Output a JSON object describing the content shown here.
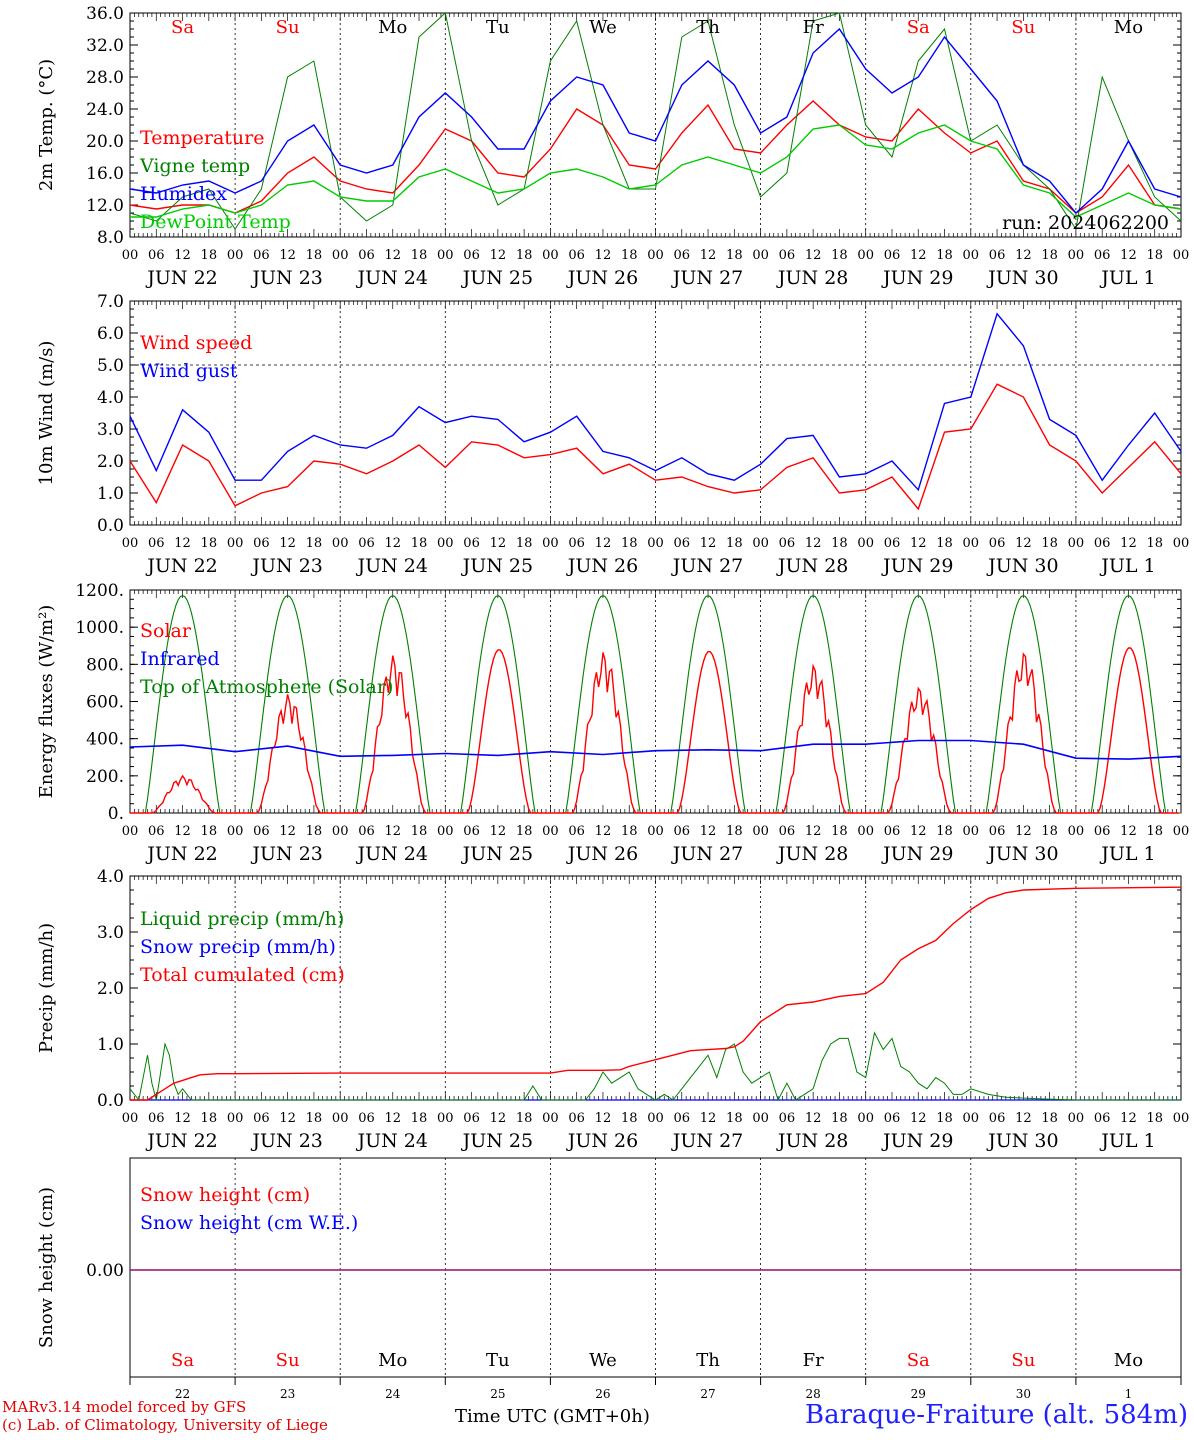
{
  "chart_data": [
    {
      "type": "line",
      "ylabel": "2m Temp. (°C)",
      "ylim": [
        8,
        36
      ],
      "yticks": [
        "8.0",
        "12.0",
        "16.0",
        "20.0",
        "24.0",
        "28.0",
        "32.0",
        "36.0"
      ],
      "annotation": "run: 2024062200",
      "series": [
        {
          "name": "Temperature",
          "color": "#ff0000",
          "x": [
            0,
            6,
            12,
            18,
            24,
            30,
            36,
            42,
            48,
            54,
            60,
            66,
            72,
            78,
            84,
            90,
            96,
            102,
            108,
            114,
            120,
            126,
            132,
            138,
            144,
            150,
            156,
            162,
            168,
            174,
            180,
            186,
            192,
            198,
            204,
            210,
            216,
            222,
            228,
            234,
            240
          ],
          "y": [
            12,
            11.5,
            12,
            12,
            11,
            12.5,
            16,
            18,
            15,
            14,
            13.5,
            17,
            21.5,
            20,
            16,
            15.5,
            19,
            24,
            22,
            17,
            16.5,
            21,
            24.5,
            19,
            18.5,
            22,
            25,
            22,
            20.5,
            20,
            24,
            21,
            18.5,
            20,
            15,
            14,
            11,
            13,
            17,
            12,
            11.5
          ]
        },
        {
          "name": "Vigne temp",
          "color": "#008000",
          "x": [
            0,
            6,
            12,
            18,
            24,
            30,
            36,
            42,
            48,
            54,
            60,
            66,
            72,
            78,
            84,
            90,
            96,
            102,
            108,
            114,
            120,
            126,
            132,
            138,
            144,
            150,
            156,
            162,
            168,
            174,
            180,
            186,
            192,
            198,
            204,
            210,
            216,
            222,
            228,
            234,
            240
          ],
          "y": [
            11,
            10,
            13,
            14,
            9,
            14,
            28,
            30,
            13,
            10,
            12,
            33,
            36,
            20,
            12,
            14,
            30,
            35,
            22,
            14,
            14,
            33,
            35,
            22,
            13,
            16,
            35,
            36,
            22,
            18,
            30,
            34,
            20,
            22,
            17,
            14,
            9,
            28,
            20,
            13,
            10
          ]
        },
        {
          "name": "Humidex",
          "color": "#0000ff",
          "x": [
            0,
            6,
            12,
            18,
            24,
            30,
            36,
            42,
            48,
            54,
            60,
            66,
            72,
            78,
            84,
            90,
            96,
            102,
            108,
            114,
            120,
            126,
            132,
            138,
            144,
            150,
            156,
            162,
            168,
            174,
            180,
            186,
            192,
            198,
            204,
            210,
            216,
            222,
            228,
            234,
            240
          ],
          "y": [
            14,
            13.5,
            14.5,
            15,
            13.5,
            15,
            20,
            22,
            17,
            16,
            17,
            23,
            26,
            23,
            19,
            19,
            25,
            28,
            27,
            21,
            20,
            27,
            30,
            27,
            21,
            23,
            31,
            34,
            29,
            26,
            28,
            33,
            29,
            25,
            17,
            15,
            11,
            14,
            20,
            14,
            13
          ]
        },
        {
          "name": "DewPoint Temp",
          "color": "#00cc00",
          "x": [
            0,
            6,
            12,
            18,
            24,
            30,
            36,
            42,
            48,
            54,
            60,
            66,
            72,
            78,
            84,
            90,
            96,
            102,
            108,
            114,
            120,
            126,
            132,
            138,
            144,
            150,
            156,
            162,
            168,
            174,
            180,
            186,
            192,
            198,
            204,
            210,
            216,
            222,
            228,
            234,
            240
          ],
          "y": [
            10.5,
            10.5,
            11.5,
            12,
            11,
            12,
            14.5,
            15,
            13,
            12.5,
            12.5,
            15.5,
            16.5,
            15,
            13.5,
            14,
            16,
            16.5,
            15.5,
            14,
            14.5,
            17,
            18,
            17,
            16,
            18,
            21.5,
            22,
            19.5,
            19,
            21,
            22,
            20,
            19,
            14.5,
            13.5,
            10.5,
            12,
            13.5,
            12,
            11.5
          ]
        }
      ]
    },
    {
      "type": "line",
      "ylabel": "10m Wind (m/s)",
      "ylim": [
        0,
        7
      ],
      "yticks": [
        "0.0",
        "1.0",
        "2.0",
        "3.0",
        "4.0",
        "5.0",
        "6.0",
        "7.0"
      ],
      "hline": 5,
      "series": [
        {
          "name": "Wind speed",
          "color": "#ff0000",
          "x": [
            0,
            6,
            12,
            18,
            24,
            30,
            36,
            42,
            48,
            54,
            60,
            66,
            72,
            78,
            84,
            90,
            96,
            102,
            108,
            114,
            120,
            126,
            132,
            138,
            144,
            150,
            156,
            162,
            168,
            174,
            180,
            186,
            192,
            198,
            204,
            210,
            216,
            222,
            228,
            234,
            240
          ],
          "y": [
            2,
            0.7,
            2.5,
            2,
            0.6,
            1,
            1.2,
            2,
            1.9,
            1.6,
            2,
            2.5,
            1.8,
            2.6,
            2.5,
            2.1,
            2.2,
            2.4,
            1.6,
            1.9,
            1.4,
            1.5,
            1.2,
            1,
            1.1,
            1.8,
            2.1,
            1,
            1.1,
            1.5,
            0.5,
            2.9,
            3,
            4.4,
            4,
            2.5,
            2,
            1,
            1.8,
            2.6,
            1.6
          ]
        },
        {
          "name": "Wind gust",
          "color": "#0000ff",
          "x": [
            0,
            6,
            12,
            18,
            24,
            30,
            36,
            42,
            48,
            54,
            60,
            66,
            72,
            78,
            84,
            90,
            96,
            102,
            108,
            114,
            120,
            126,
            132,
            138,
            144,
            150,
            156,
            162,
            168,
            174,
            180,
            186,
            192,
            198,
            204,
            210,
            216,
            222,
            228,
            234,
            240
          ],
          "y": [
            3.4,
            1.7,
            3.6,
            2.9,
            1.4,
            1.4,
            2.3,
            2.8,
            2.5,
            2.4,
            2.8,
            3.7,
            3.2,
            3.4,
            3.3,
            2.6,
            2.9,
            3.4,
            2.3,
            2.1,
            1.7,
            2.1,
            1.6,
            1.4,
            1.9,
            2.7,
            2.8,
            1.5,
            1.6,
            2,
            1.1,
            3.8,
            4,
            6.6,
            5.6,
            3.3,
            2.8,
            1.4,
            2.5,
            3.5,
            2.3
          ]
        }
      ]
    },
    {
      "type": "line",
      "ylabel": "Energy fluxes (W/m²)",
      "ylim": [
        0,
        1200
      ],
      "yticks": [
        "0.",
        "200.",
        "400.",
        "600.",
        "800.",
        "1000.",
        "1200."
      ],
      "series": [
        {
          "name": "Solar",
          "color": "#ff0000",
          "days": [
            {
              "peak": 200,
              "jagged": true
            },
            {
              "peak": 640,
              "jagged": true
            },
            {
              "peak": 850,
              "jagged": true
            },
            {
              "peak": 880,
              "jagged": false
            },
            {
              "peak": 870,
              "jagged": true
            },
            {
              "peak": 870,
              "jagged": false
            },
            {
              "peak": 800,
              "jagged": true
            },
            {
              "peak": 680,
              "jagged": true
            },
            {
              "peak": 870,
              "jagged": true
            },
            {
              "peak": 890,
              "jagged": false
            }
          ]
        },
        {
          "name": "Infrared",
          "color": "#0000ff",
          "x": [
            0,
            12,
            24,
            36,
            48,
            60,
            72,
            84,
            96,
            108,
            120,
            132,
            144,
            156,
            168,
            180,
            192,
            204,
            216,
            228,
            240
          ],
          "y": [
            355,
            365,
            330,
            360,
            305,
            310,
            320,
            310,
            330,
            315,
            335,
            340,
            335,
            370,
            370,
            390,
            390,
            370,
            295,
            290,
            305
          ]
        },
        {
          "name": "Top of Atmosphere (Solar)",
          "color": "#008000",
          "peak": 1170
        }
      ]
    },
    {
      "type": "line",
      "ylabel": "Precip (mm/h)",
      "ylim": [
        0,
        4
      ],
      "yticks": [
        "0.0",
        "1.0",
        "2.0",
        "3.0",
        "4.0"
      ],
      "series": [
        {
          "name": "Liquid precip (mm/h)",
          "color": "#008000",
          "x": [
            0,
            2,
            4,
            5,
            6,
            7,
            8,
            9,
            10,
            11,
            12,
            14,
            16,
            20,
            24,
            90,
            92,
            94,
            96,
            100,
            104,
            106,
            108,
            110,
            112,
            114,
            116,
            118,
            120,
            122,
            124,
            126,
            128,
            130,
            132,
            134,
            136,
            138,
            140,
            142,
            144,
            146,
            148,
            150,
            152,
            154,
            156,
            158,
            160,
            162,
            164,
            166,
            168,
            170,
            172,
            174,
            176,
            178,
            180,
            182,
            184,
            186,
            188,
            190,
            192,
            196,
            200,
            208,
            216,
            240
          ],
          "y": [
            0.2,
            0,
            0.8,
            0.3,
            0,
            0.5,
            1,
            0.8,
            0.3,
            0.1,
            0.2,
            0,
            0,
            0,
            0,
            0,
            0.25,
            0,
            0,
            0,
            0,
            0.2,
            0.5,
            0.3,
            0.4,
            0.5,
            0.2,
            0.1,
            0,
            0.1,
            0,
            0.2,
            0.4,
            0.6,
            0.8,
            0.4,
            0.9,
            1,
            0.5,
            0.3,
            0.4,
            0.5,
            0,
            0.3,
            0,
            0.1,
            0.2,
            0.7,
            1,
            1.1,
            1.1,
            0.5,
            0.4,
            1.2,
            0.9,
            1.1,
            0.6,
            0.5,
            0.3,
            0.2,
            0.4,
            0.3,
            0.1,
            0.1,
            0.2,
            0.1,
            0.05,
            0.02,
            0,
            0
          ]
        },
        {
          "name": "Snow precip (mm/h)",
          "color": "#0000ff",
          "x": [
            0,
            240
          ],
          "y": [
            0,
            0
          ]
        },
        {
          "name": "Total cumulated (cm)",
          "color": "#ff0000",
          "x": [
            0,
            4,
            8,
            10,
            12,
            14,
            16,
            20,
            24,
            48,
            72,
            96,
            100,
            108,
            112,
            114,
            120,
            124,
            128,
            132,
            136,
            138,
            140,
            144,
            150,
            156,
            162,
            168,
            172,
            176,
            180,
            184,
            186,
            188,
            192,
            196,
            200,
            204,
            216,
            240
          ],
          "y": [
            0,
            0,
            0.2,
            0.3,
            0.35,
            0.4,
            0.45,
            0.47,
            0.47,
            0.48,
            0.48,
            0.48,
            0.53,
            0.53,
            0.54,
            0.6,
            0.72,
            0.8,
            0.88,
            0.9,
            0.92,
            0.95,
            1.05,
            1.4,
            1.7,
            1.75,
            1.85,
            1.9,
            2.1,
            2.5,
            2.7,
            2.85,
            3,
            3.15,
            3.4,
            3.6,
            3.7,
            3.75,
            3.78,
            3.8
          ]
        }
      ]
    },
    {
      "type": "line",
      "ylabel": "Snow height (cm)",
      "yticks": [
        "0.00"
      ],
      "series": [
        {
          "name": "Snow height (cm)",
          "color": "#ff0000",
          "x": [
            0,
            240
          ],
          "y": [
            0,
            0
          ]
        },
        {
          "name": "Snow height (cm W.E.)",
          "color": "#0000ff",
          "x": [
            0,
            240
          ],
          "y": [
            0,
            0
          ]
        }
      ]
    }
  ],
  "axes": {
    "hour_labels": [
      "00",
      "06",
      "12",
      "18"
    ],
    "date_labels": [
      "JUN 22",
      "JUN 23",
      "JUN 24",
      "JUN 25",
      "JUN 26",
      "JUN 27",
      "JUN 28",
      "JUN 29",
      "JUN 30",
      "JUL  1"
    ],
    "weekday_labels": [
      "Sa",
      "Su",
      "Mo",
      "Tu",
      "We",
      "Th",
      "Fr",
      "Sa",
      "Su",
      "Mo"
    ],
    "weekend_flags": [
      true,
      true,
      false,
      false,
      false,
      false,
      false,
      true,
      true,
      false
    ],
    "day_numbers": [
      "22",
      "23",
      "24",
      "25",
      "26",
      "27",
      "28",
      "29",
      "30",
      "1"
    ],
    "weekday_color": "#000000",
    "weekend_color": "#ff0000"
  },
  "footer": {
    "credit_line1": "MARv3.14 model forced by GFS",
    "credit_line2": "(c) Lab. of Climatology, University of Liege",
    "xlabel": "Time UTC (GMT+0h)",
    "station": "Baraque-Fraiture (alt. 584m)"
  }
}
